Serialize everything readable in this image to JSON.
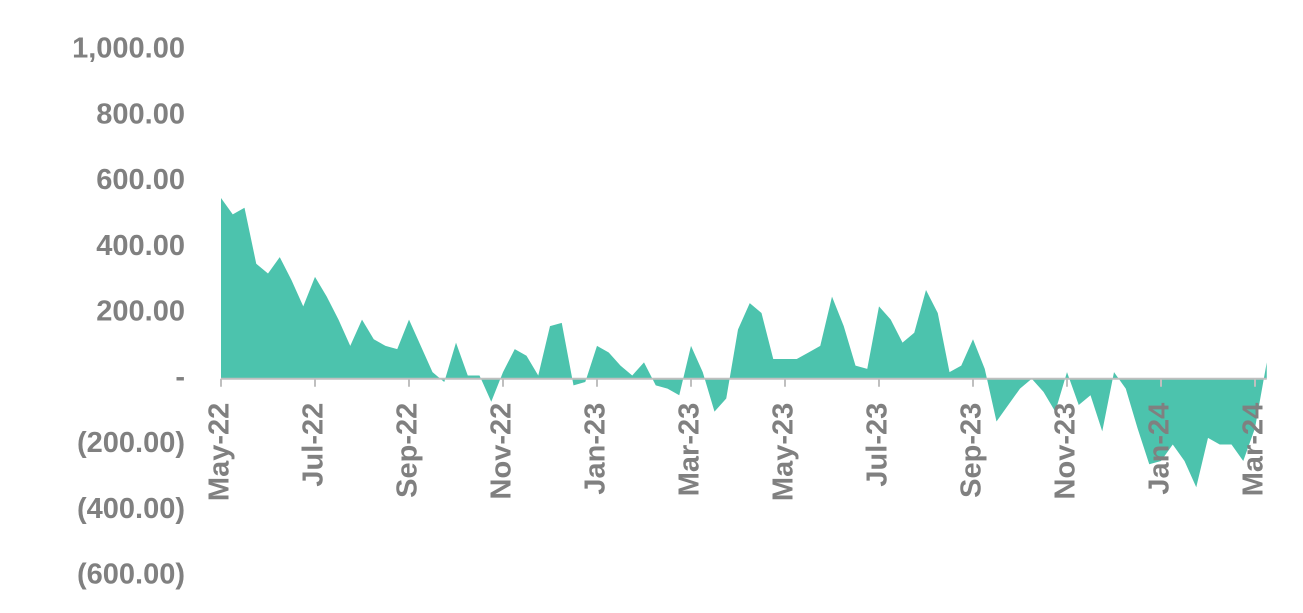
{
  "chart_data": {
    "type": "area",
    "color": "#4cc3ad",
    "categories": [
      "May-22",
      null,
      null,
      null,
      null,
      null,
      null,
      null,
      "Jul-22",
      null,
      null,
      null,
      null,
      null,
      null,
      null,
      "Sep-22",
      null,
      null,
      null,
      null,
      null,
      null,
      null,
      "Nov-22",
      null,
      null,
      null,
      null,
      null,
      null,
      null,
      "Jan-23",
      null,
      null,
      null,
      null,
      null,
      null,
      null,
      "Mar-23",
      null,
      null,
      null,
      null,
      null,
      null,
      null,
      "May-23",
      null,
      null,
      null,
      null,
      null,
      null,
      null,
      "Jul-23",
      null,
      null,
      null,
      null,
      null,
      null,
      null,
      "Sep-23",
      null,
      null,
      null,
      null,
      null,
      null,
      null,
      "Nov-23",
      null,
      null,
      null,
      null,
      null,
      null,
      null,
      "Jan-24",
      null,
      null,
      null,
      null,
      null,
      null,
      null,
      "Mar-24",
      null
    ],
    "values": [
      550,
      500,
      520,
      350,
      320,
      370,
      300,
      220,
      310,
      250,
      180,
      100,
      180,
      120,
      100,
      90,
      180,
      100,
      20,
      -10,
      110,
      10,
      10,
      -70,
      20,
      90,
      70,
      10,
      160,
      170,
      -20,
      -10,
      100,
      80,
      40,
      10,
      50,
      -20,
      -30,
      -50,
      100,
      20,
      -100,
      -60,
      150,
      230,
      200,
      60,
      60,
      60,
      80,
      100,
      250,
      160,
      40,
      30,
      220,
      180,
      110,
      140,
      270,
      200,
      20,
      40,
      120,
      30,
      -130,
      -80,
      -30,
      0,
      -40,
      -100,
      20,
      -80,
      -50,
      -160,
      20,
      -30,
      -150,
      -260,
      -250,
      -200,
      -250,
      -330,
      -180,
      -200,
      -200,
      -250,
      -150,
      50
    ],
    "ylim": [
      -600,
      1000
    ],
    "yticks": [
      {
        "value": 1000,
        "label": "1,000.00"
      },
      {
        "value": 800,
        "label": "800.00"
      },
      {
        "value": 600,
        "label": "600.00"
      },
      {
        "value": 400,
        "label": "400.00"
      },
      {
        "value": 200,
        "label": "200.00"
      },
      {
        "value": 0,
        "label": "-"
      },
      {
        "value": -200,
        "label": "(200.00)"
      },
      {
        "value": -400,
        "label": "(400.00)"
      },
      {
        "value": -600,
        "label": "(600.00)"
      }
    ]
  }
}
